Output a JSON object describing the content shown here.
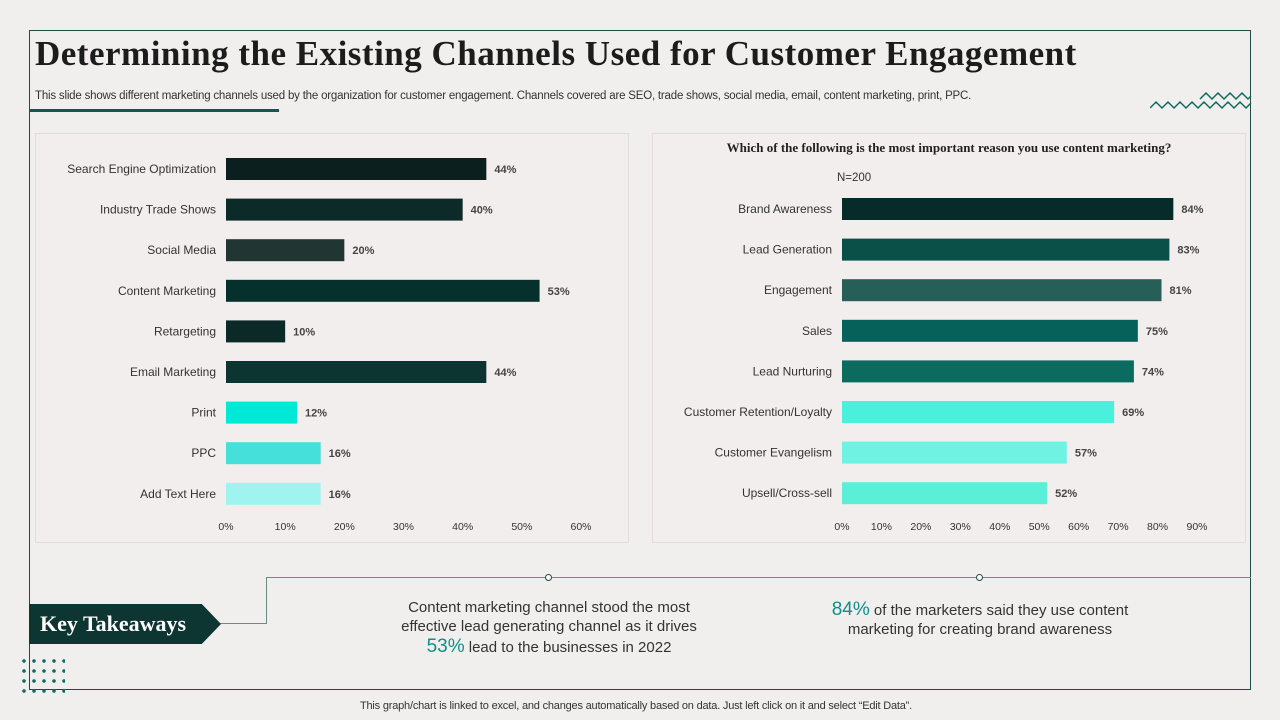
{
  "slide": {
    "title": "Determining the Existing Channels Used for Customer Engagement",
    "subtitle": "This slide shows different marketing channels used by the organization for customer engagement. Channels covered are SEO, trade shows, social media, email, content marketing, print, PPC.",
    "footer": "This graph/chart is linked to excel, and changes automatically based on data. Just left click on it and select “Edit Data”."
  },
  "takeaways": {
    "label": "Key Takeaways",
    "item1": {
      "line1": "Content marketing channel stood the most",
      "line2": "effective lead generating channel as it drives",
      "highlight": "53%",
      "line3": " lead to the businesses in 2022"
    },
    "item2": {
      "highlight": "84%",
      "line1": " of the marketers said they use content",
      "line2": "marketing for creating brand awareness"
    }
  },
  "chart_data": [
    {
      "type": "bar",
      "orientation": "horizontal",
      "title": "",
      "categories": [
        "Search Engine Optimization",
        "Industry Trade Shows",
        "Social Media",
        "Content Marketing",
        "Retargeting",
        "Email Marketing",
        "Print",
        "PPC",
        "Add Text Here"
      ],
      "values": [
        44,
        40,
        20,
        53,
        10,
        44,
        12,
        16,
        16
      ],
      "data_labels": [
        "44%",
        "40%",
        "20%",
        "53%",
        "10%",
        "44%",
        "12%",
        "16%",
        "16%"
      ],
      "colors": [
        "#0a1f1e",
        "#0c2a27",
        "#213533",
        "#06302b",
        "#0b2a27",
        "#0c3531",
        "#00e8d6",
        "#45e0da",
        "#9ff4f0"
      ],
      "xlim": [
        0,
        60
      ],
      "ticks": [
        "0%",
        "10%",
        "20%",
        "30%",
        "40%",
        "50%",
        "60%"
      ],
      "grid": false
    },
    {
      "type": "bar",
      "orientation": "horizontal",
      "title": "Which of the following is the most important reason you use content marketing?",
      "note": "N=200",
      "categories": [
        "Brand Awareness",
        "Lead Generation",
        "Engagement",
        "Sales",
        "Lead Nurturing",
        "Customer Retention/Loyalty",
        "Customer Evangelism",
        "Upsell/Cross-sell"
      ],
      "values": [
        84,
        83,
        81,
        75,
        74,
        69,
        57,
        52
      ],
      "data_labels": [
        "84%",
        "83%",
        "81%",
        "75%",
        "74%",
        "69%",
        "57%",
        "52%"
      ],
      "colors": [
        "#072b28",
        "#0a4f48",
        "#275e57",
        "#06615a",
        "#0b6b5f",
        "#4af0dc",
        "#6ff2e2",
        "#5cefd8"
      ],
      "xlim": [
        0,
        90
      ],
      "ticks": [
        "0%",
        "10%",
        "20%",
        "30%",
        "40%",
        "50%",
        "60%",
        "70%",
        "80%",
        "90%"
      ],
      "grid": false
    }
  ]
}
